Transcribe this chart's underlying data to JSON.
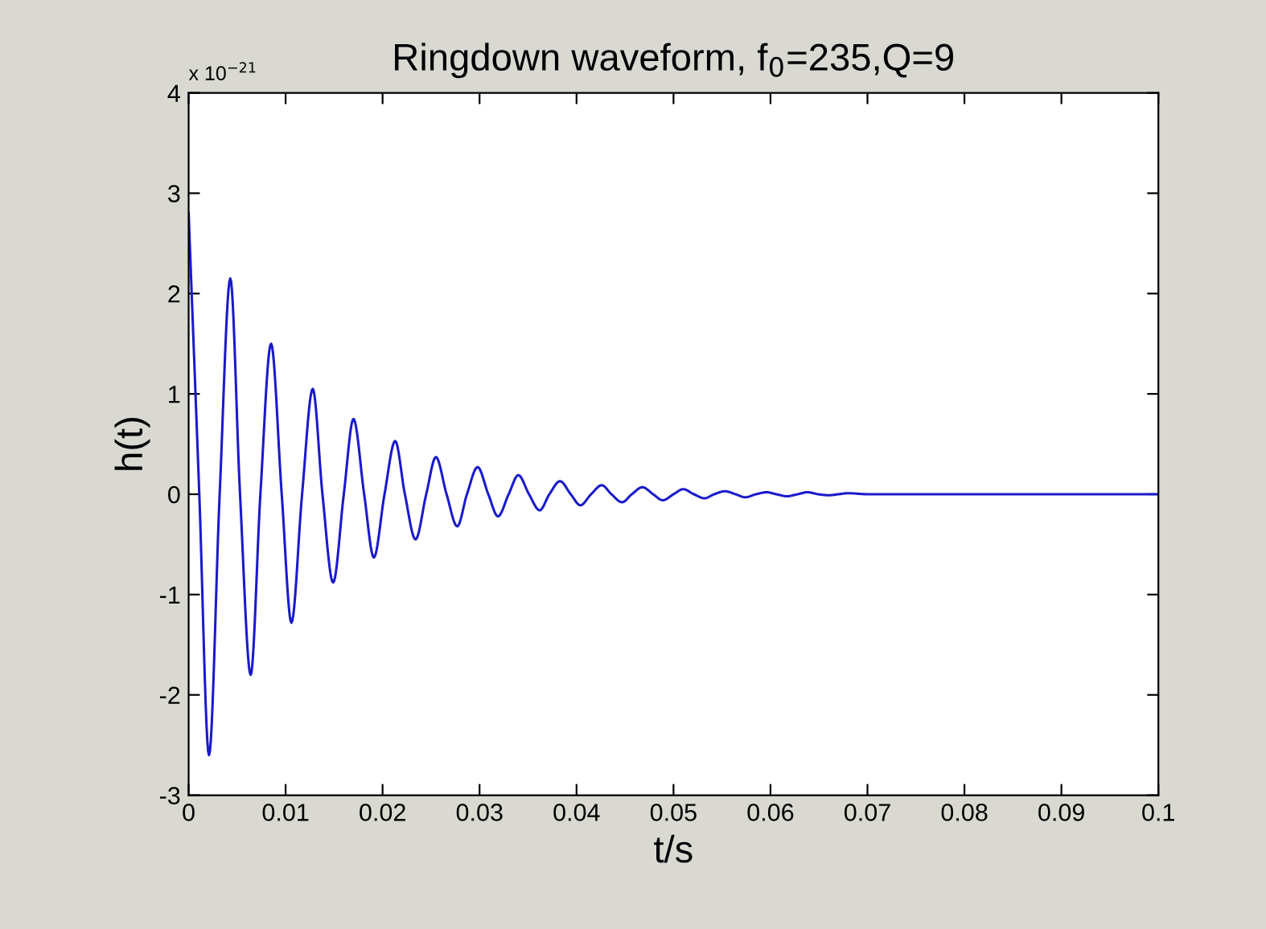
{
  "chart_data": {
    "type": "line",
    "title": "Ringdown waveform, f$_{0}$=235,Q=9",
    "xlabel": "t/s",
    "ylabel": "h(t)",
    "annotations": [
      "x 10$^{−21}$"
    ],
    "xlim": [
      0,
      0.1
    ],
    "ylim": [
      -3,
      4
    ],
    "xticks": [
      0,
      0.01,
      0.02,
      0.03,
      0.04,
      0.05,
      0.06,
      0.07,
      0.08,
      0.09,
      0.1
    ],
    "yticks": [
      -3,
      -2,
      -1,
      0,
      1,
      2,
      3,
      4
    ],
    "grid": false,
    "legend": false,
    "marker": "none",
    "line_style": "solid",
    "series": [
      {
        "color": "#1a1acc",
        "x": [
          0,
          0.0011,
          0.0021,
          0.0032,
          0.0043,
          0.0053,
          0.0064,
          0.0074,
          0.0085,
          0.0096,
          0.0106,
          0.0117,
          0.0128,
          0.0138,
          0.0149,
          0.016,
          0.017,
          0.0181,
          0.0191,
          0.0202,
          0.0213,
          0.0223,
          0.0234,
          0.0245,
          0.0255,
          0.0266,
          0.0277,
          0.0287,
          0.0298,
          0.0309,
          0.0319,
          0.033,
          0.034,
          0.0351,
          0.0362,
          0.0372,
          0.0383,
          0.0394,
          0.0404,
          0.0415,
          0.0426,
          0.0436,
          0.0447,
          0.0457,
          0.0468,
          0.0479,
          0.0489,
          0.05,
          0.051,
          0.0521,
          0.0532,
          0.0542,
          0.0553,
          0.0564,
          0.0574,
          0.0585,
          0.0596,
          0.0606,
          0.0617,
          0.0628,
          0.0638,
          0.0649,
          0.066,
          0.067,
          0.068,
          0.07,
          0.1
        ],
        "values": [
          2.8,
          0,
          -2.6,
          0,
          2.15,
          0,
          -1.8,
          0,
          1.5,
          0,
          -1.28,
          0,
          1.05,
          0,
          -0.88,
          0,
          0.75,
          0,
          -0.63,
          0,
          0.53,
          0,
          -0.45,
          0,
          0.37,
          0,
          -0.32,
          0,
          0.27,
          0,
          -0.22,
          0,
          0.19,
          0,
          -0.16,
          0,
          0.13,
          0,
          -0.11,
          0,
          0.09,
          0,
          -0.08,
          0,
          0.07,
          0,
          -0.06,
          0,
          0.05,
          0,
          -0.04,
          0,
          0.03,
          0,
          -0.03,
          0,
          0.02,
          0,
          -0.02,
          0,
          0.02,
          0,
          -0.01,
          0,
          0.01,
          0,
          0
        ]
      }
    ]
  }
}
